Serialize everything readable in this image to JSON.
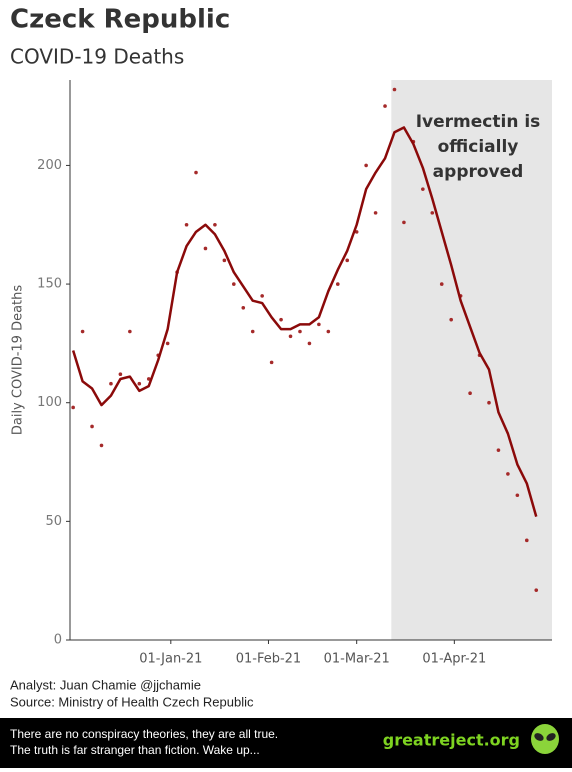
{
  "header": {
    "title": "Czeck Republic",
    "subtitle": "COVID-19 Deaths"
  },
  "chart_data": {
    "type": "line",
    "y_label": "Daily COVID-19 Deaths",
    "x": [
      "2020-12-01",
      "2020-12-04",
      "2020-12-07",
      "2020-12-10",
      "2020-12-13",
      "2020-12-16",
      "2020-12-19",
      "2020-12-22",
      "2020-12-25",
      "2020-12-28",
      "2020-12-31",
      "2021-01-03",
      "2021-01-06",
      "2021-01-09",
      "2021-01-12",
      "2021-01-15",
      "2021-01-18",
      "2021-01-21",
      "2021-01-24",
      "2021-01-27",
      "2021-01-30",
      "2021-02-02",
      "2021-02-05",
      "2021-02-08",
      "2021-02-11",
      "2021-02-14",
      "2021-02-17",
      "2021-02-20",
      "2021-02-23",
      "2021-02-26",
      "2021-03-01",
      "2021-03-04",
      "2021-03-07",
      "2021-03-10",
      "2021-03-13",
      "2021-03-16",
      "2021-03-19",
      "2021-03-22",
      "2021-03-25",
      "2021-03-28",
      "2021-03-31",
      "2021-04-03",
      "2021-04-06",
      "2021-04-09",
      "2021-04-12",
      "2021-04-15",
      "2021-04-18",
      "2021-04-21",
      "2021-04-24",
      "2021-04-27"
    ],
    "series": [
      {
        "type": "line",
        "color": "#8b0a0a",
        "values": [
          122,
          109,
          106,
          99,
          103,
          110,
          111,
          105,
          107,
          118,
          131,
          155,
          166,
          172,
          175,
          171,
          164,
          155,
          149,
          143,
          142,
          136,
          131,
          131,
          133,
          133,
          136,
          147,
          156,
          164,
          175,
          190,
          197,
          203,
          214,
          216,
          209,
          199,
          186,
          172,
          158,
          143,
          132,
          121,
          114,
          96,
          87,
          74,
          66,
          52
        ]
      },
      {
        "type": "scatter",
        "color": "#a52a2a",
        "values": [
          98,
          130,
          90,
          82,
          108,
          112,
          130,
          108,
          110,
          120,
          125,
          155,
          175,
          197,
          165,
          175,
          160,
          150,
          140,
          130,
          145,
          117,
          135,
          128,
          130,
          125,
          133,
          130,
          150,
          160,
          172,
          200,
          180,
          225,
          232,
          176,
          210,
          190,
          180,
          150,
          135,
          145,
          104,
          120,
          100,
          80,
          70,
          61,
          42,
          21
        ]
      }
    ],
    "xlim": [
      "2020-11-30",
      "2021-05-02"
    ],
    "xticks": [
      {
        "value": "2021-01-01",
        "label": "01-Jan-21"
      },
      {
        "value": "2021-02-01",
        "label": "01-Feb-21"
      },
      {
        "value": "2021-03-01",
        "label": "01-Mar-21"
      },
      {
        "value": "2021-04-01",
        "label": "01-Apr-21"
      }
    ],
    "ylim": [
      0,
      236
    ],
    "yticks": [
      0,
      50,
      100,
      150,
      200
    ],
    "grid": false,
    "shade_start": "2021-03-12",
    "annotation_lines": [
      "Ivermectin is",
      "officially",
      "approved"
    ]
  },
  "footer": {
    "analyst": "Analyst: Juan Chamie @jjchamie",
    "source": "Source: Ministry of Health Czech Republic"
  },
  "banner": {
    "lines": [
      "There are no conspiracy theories, they are all true.",
      "The truth is far stranger than fiction. Wake up..."
    ],
    "site": "greatreject.org"
  }
}
